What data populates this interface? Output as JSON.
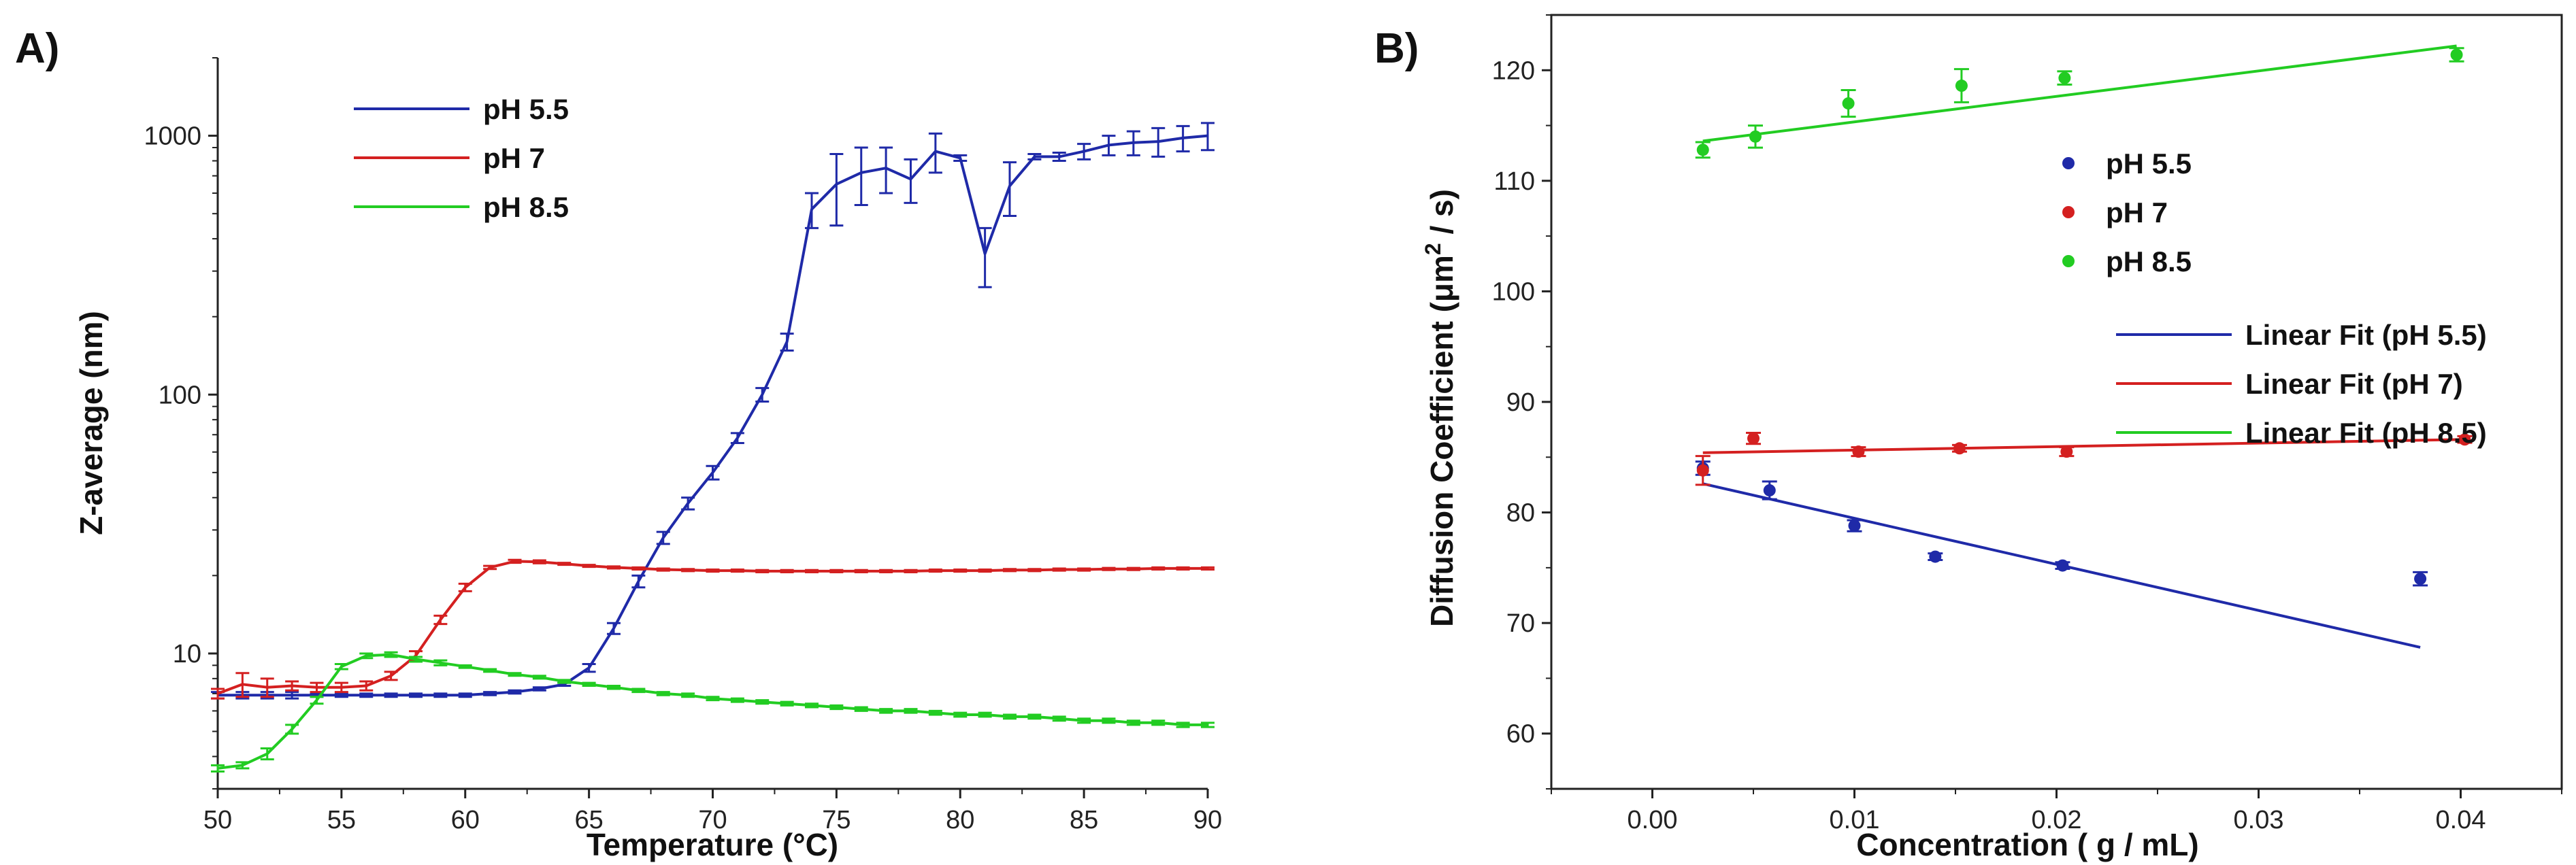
{
  "chart_data": [
    {
      "panel_label": "A)",
      "type": "line",
      "xlabel": "Temperature (°C)",
      "ylabel": "Z-average (nm)",
      "xlim": [
        50,
        90
      ],
      "ylim": [
        3,
        2000
      ],
      "yscale": "log",
      "x_ticks": [
        50,
        55,
        60,
        65,
        70,
        75,
        80,
        85,
        90
      ],
      "y_ticks": [
        10,
        100,
        1000
      ],
      "legend": {
        "placement": "top-left"
      },
      "series": [
        {
          "name": "pH 5.5",
          "color": "#1f2aa8",
          "x": [
            50,
            51,
            52,
            53,
            54,
            55,
            56,
            57,
            58,
            59,
            60,
            61,
            62,
            63,
            64,
            65,
            66,
            67,
            68,
            69,
            70,
            71,
            72,
            73,
            74,
            75,
            76,
            77,
            78,
            79,
            80,
            81,
            82,
            83,
            84,
            85,
            86,
            87,
            88,
            89,
            90
          ],
          "y": [
            6.9,
            6.9,
            6.9,
            6.9,
            6.9,
            6.9,
            6.9,
            6.9,
            6.9,
            6.9,
            6.9,
            7.0,
            7.1,
            7.3,
            7.6,
            8.8,
            12.5,
            19,
            28,
            38,
            50,
            68,
            100,
            160,
            520,
            650,
            720,
            750,
            680,
            870,
            820,
            350,
            640,
            830,
            830,
            870,
            920,
            940,
            950,
            980,
            1000
          ],
          "err": [
            0.2,
            0.2,
            0.2,
            0.2,
            0.1,
            0.1,
            0.1,
            0.1,
            0.1,
            0.1,
            0.1,
            0.1,
            0.1,
            0.1,
            0.1,
            0.3,
            0.6,
            1,
            1.5,
            2,
            3,
            3,
            6,
            12,
            80,
            200,
            180,
            150,
            130,
            150,
            20,
            90,
            150,
            20,
            30,
            60,
            80,
            100,
            120,
            110,
            120
          ]
        },
        {
          "name": "pH 7",
          "color": "#d42020",
          "x": [
            50,
            51,
            52,
            53,
            54,
            55,
            56,
            57,
            58,
            59,
            60,
            61,
            62,
            63,
            64,
            65,
            66,
            67,
            68,
            69,
            70,
            71,
            72,
            73,
            74,
            75,
            76,
            77,
            78,
            79,
            80,
            81,
            82,
            83,
            84,
            85,
            86,
            87,
            88,
            89,
            90
          ],
          "y": [
            7.0,
            7.6,
            7.4,
            7.5,
            7.4,
            7.4,
            7.5,
            8.2,
            9.8,
            13.5,
            18,
            21.5,
            22.7,
            22.6,
            22.2,
            21.8,
            21.5,
            21.3,
            21.1,
            21.0,
            20.9,
            20.9,
            20.8,
            20.8,
            20.8,
            20.8,
            20.8,
            20.8,
            20.8,
            20.9,
            20.9,
            20.9,
            21.0,
            21.0,
            21.1,
            21.1,
            21.2,
            21.2,
            21.3,
            21.3,
            21.3
          ],
          "err": [
            0.3,
            0.8,
            0.6,
            0.3,
            0.3,
            0.3,
            0.3,
            0.3,
            0.4,
            0.5,
            0.6,
            0.3,
            0.3,
            0.3,
            0.2,
            0.2,
            0.2,
            0.2,
            0.2,
            0.2,
            0.2,
            0.2,
            0.2,
            0.2,
            0.2,
            0.2,
            0.2,
            0.2,
            0.2,
            0.2,
            0.2,
            0.2,
            0.2,
            0.2,
            0.2,
            0.2,
            0.2,
            0.2,
            0.2,
            0.2,
            0.2
          ]
        },
        {
          "name": "pH 8.5",
          "color": "#22cc22",
          "x": [
            50,
            51,
            52,
            53,
            54,
            55,
            56,
            57,
            58,
            59,
            60,
            61,
            62,
            63,
            64,
            65,
            66,
            67,
            68,
            69,
            70,
            71,
            72,
            73,
            74,
            75,
            76,
            77,
            78,
            79,
            80,
            81,
            82,
            83,
            84,
            85,
            86,
            87,
            88,
            89,
            90
          ],
          "y": [
            3.6,
            3.7,
            4.1,
            5.1,
            6.6,
            8.9,
            9.8,
            9.9,
            9.5,
            9.2,
            8.9,
            8.6,
            8.3,
            8.1,
            7.8,
            7.6,
            7.4,
            7.2,
            7.0,
            6.9,
            6.7,
            6.6,
            6.5,
            6.4,
            6.3,
            6.2,
            6.1,
            6.0,
            6.0,
            5.9,
            5.8,
            5.8,
            5.7,
            5.7,
            5.6,
            5.5,
            5.5,
            5.4,
            5.4,
            5.3,
            5.3
          ],
          "err": [
            0.1,
            0.1,
            0.2,
            0.2,
            0.2,
            0.2,
            0.2,
            0.2,
            0.2,
            0.2,
            0.1,
            0.1,
            0.1,
            0.1,
            0.1,
            0.1,
            0.1,
            0.1,
            0.1,
            0.1,
            0.1,
            0.1,
            0.1,
            0.1,
            0.1,
            0.1,
            0.1,
            0.1,
            0.1,
            0.1,
            0.1,
            0.1,
            0.1,
            0.1,
            0.1,
            0.1,
            0.1,
            0.1,
            0.1,
            0.1,
            0.1
          ]
        }
      ]
    },
    {
      "panel_label": "B)",
      "type": "scatter",
      "xlabel": "Concentration ( g / mL)",
      "ylabel_parts": [
        "Diffusion Coefficient (",
        "μm",
        "2",
        " / s)"
      ],
      "xlim": [
        -0.005,
        0.045
      ],
      "ylim": [
        55,
        125
      ],
      "x_ticks": [
        0.0,
        0.01,
        0.02,
        0.03,
        0.04
      ],
      "x_tick_labels": [
        "0.00",
        "0.01",
        "0.02",
        "0.03",
        "0.04"
      ],
      "y_ticks": [
        60,
        70,
        80,
        90,
        100,
        110,
        120
      ],
      "legend": {
        "placement": "right"
      },
      "points": [
        {
          "name": "pH 5.5",
          "color": "#1f2aa8",
          "x": [
            0.0025,
            0.0058,
            0.01,
            0.014,
            0.0203,
            0.038
          ],
          "y": [
            84.0,
            82.0,
            78.8,
            76.0,
            75.2,
            74.0
          ],
          "err": [
            0.6,
            0.8,
            0.5,
            0.3,
            0.3,
            0.6
          ]
        },
        {
          "name": "pH 7",
          "color": "#d42020",
          "x": [
            0.0025,
            0.005,
            0.0102,
            0.0152,
            0.0205,
            0.0402
          ],
          "y": [
            83.8,
            86.7,
            85.5,
            85.8,
            85.5,
            86.6
          ],
          "err": [
            1.3,
            0.5,
            0.4,
            0.3,
            0.4,
            0.3
          ]
        },
        {
          "name": "pH 8.5",
          "color": "#22cc22",
          "x": [
            0.0025,
            0.0051,
            0.0097,
            0.0153,
            0.0204,
            0.0398
          ],
          "y": [
            112.8,
            114.0,
            117.0,
            118.6,
            119.3,
            121.4
          ],
          "err": [
            0.7,
            1.0,
            1.2,
            1.5,
            0.6,
            0.6
          ]
        }
      ],
      "fits": [
        {
          "name": "Linear Fit (pH 5.5)",
          "color": "#1f2aa8",
          "x": [
            0.0025,
            0.038
          ],
          "y": [
            82.6,
            67.8
          ]
        },
        {
          "name": "Linear Fit (pH 7)",
          "color": "#d42020",
          "x": [
            0.0025,
            0.0402
          ],
          "y": [
            85.4,
            86.6
          ]
        },
        {
          "name": "Linear Fit (pH 8.5)",
          "color": "#22cc22",
          "x": [
            0.0025,
            0.0398
          ],
          "y": [
            113.6,
            122.2
          ]
        }
      ]
    }
  ]
}
